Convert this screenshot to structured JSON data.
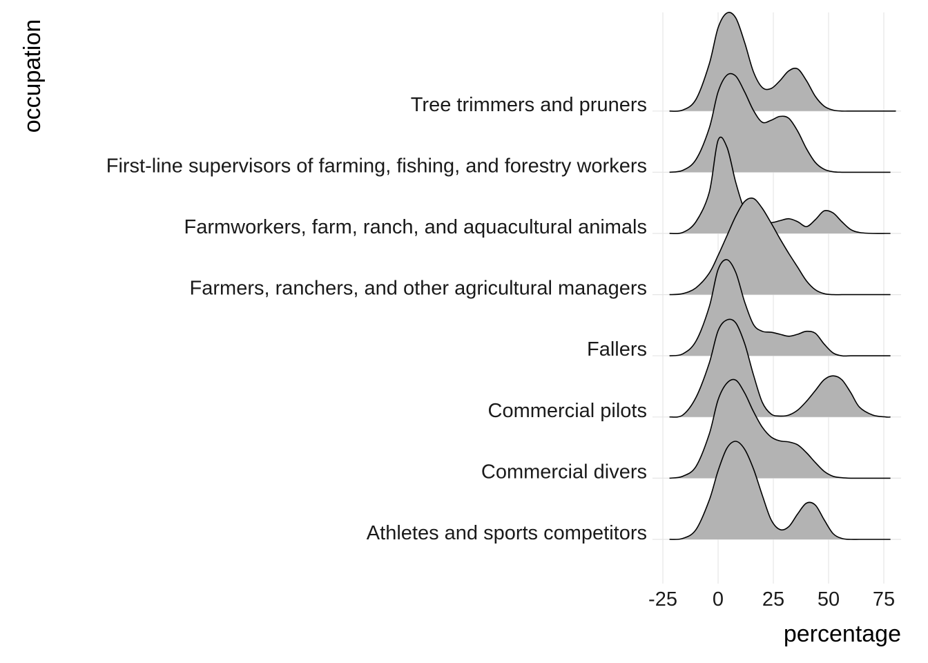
{
  "chart_data": {
    "type": "ridgeline",
    "xlabel": "percentage",
    "ylabel": "occupation",
    "xlim": [
      -25,
      75
    ],
    "x_ticks": [
      "-25",
      "0",
      "25",
      "50",
      "75"
    ],
    "grid": true,
    "fill_color": "#b3b3b3",
    "line_color": "#000000",
    "x_grid": [
      -22,
      -16,
      -10,
      -4,
      0,
      4,
      8,
      12,
      16,
      20,
      24,
      28,
      32,
      36,
      40,
      44,
      48,
      52,
      56,
      60,
      64,
      70,
      76,
      80
    ],
    "categories": [
      "Athletes and sports competitors",
      "Commercial divers",
      "Commercial pilots",
      "Fallers",
      "Farmers, ranchers, and other agricultural managers",
      "Farmworkers, farm, ranch, and aquacultural animals",
      "First-line supervisors of farming, fishing, and forestry workers",
      "Tree trimmers and pruners"
    ],
    "series": [
      {
        "name": "Athletes and sports competitors",
        "range": [
          -22,
          78
        ],
        "density": [
          0,
          0.01,
          0.1,
          0.4,
          0.7,
          0.93,
          1.0,
          0.92,
          0.72,
          0.45,
          0.2,
          0.1,
          0.13,
          0.26,
          0.37,
          0.35,
          0.2,
          0.06,
          0.01,
          0,
          0,
          0,
          0,
          0
        ]
      },
      {
        "name": "Commercial divers",
        "range": [
          -22,
          78
        ],
        "density": [
          0,
          0.02,
          0.12,
          0.45,
          0.8,
          0.97,
          1.0,
          0.87,
          0.68,
          0.52,
          0.42,
          0.38,
          0.37,
          0.34,
          0.26,
          0.16,
          0.07,
          0.02,
          0.005,
          0,
          0,
          0,
          0,
          0
        ]
      },
      {
        "name": "Commercial pilots",
        "range": [
          -22,
          78
        ],
        "density": [
          0,
          0.02,
          0.2,
          0.55,
          0.88,
          0.99,
          0.96,
          0.75,
          0.43,
          0.15,
          0.03,
          0.01,
          0.02,
          0.07,
          0.16,
          0.27,
          0.38,
          0.42,
          0.38,
          0.25,
          0.1,
          0.02,
          0,
          0
        ]
      },
      {
        "name": "Fallers",
        "range": [
          -22,
          78
        ],
        "density": [
          0,
          0.02,
          0.15,
          0.5,
          0.88,
          0.98,
          0.85,
          0.55,
          0.32,
          0.25,
          0.24,
          0.22,
          0.2,
          0.22,
          0.25,
          0.23,
          0.12,
          0.03,
          0,
          0,
          0,
          0,
          0,
          0
        ]
      },
      {
        "name": "Farmers, ranchers, and other agricultural managers",
        "range": [
          -22,
          78
        ],
        "density": [
          0,
          0.01,
          0.07,
          0.22,
          0.4,
          0.6,
          0.8,
          0.95,
          0.98,
          0.88,
          0.73,
          0.57,
          0.42,
          0.28,
          0.14,
          0.05,
          0.01,
          0,
          0,
          0,
          0,
          0,
          0,
          0
        ]
      },
      {
        "name": "Farmworkers, farm, ranch, and aquacultural animals",
        "range": [
          -22,
          78
        ],
        "density": [
          0,
          0.01,
          0.12,
          0.42,
          0.95,
          0.88,
          0.52,
          0.24,
          0.14,
          0.12,
          0.11,
          0.13,
          0.15,
          0.12,
          0.07,
          0.14,
          0.23,
          0.21,
          0.12,
          0.04,
          0.01,
          0,
          0,
          0
        ]
      },
      {
        "name": "First-line supervisors of farming, fishing, and forestry workers",
        "range": [
          -22,
          78
        ],
        "density": [
          0,
          0.02,
          0.13,
          0.45,
          0.82,
          0.99,
          0.98,
          0.82,
          0.63,
          0.51,
          0.53,
          0.57,
          0.55,
          0.42,
          0.24,
          0.1,
          0.03,
          0.005,
          0,
          0,
          0,
          0,
          0,
          0
        ]
      },
      {
        "name": "Tree trimmers and pruners",
        "range": [
          -22,
          80
        ],
        "density": [
          0,
          0.01,
          0.12,
          0.48,
          0.85,
          1.0,
          0.95,
          0.7,
          0.4,
          0.24,
          0.23,
          0.31,
          0.41,
          0.43,
          0.31,
          0.15,
          0.05,
          0.01,
          0,
          0,
          0,
          0,
          0,
          0
        ]
      }
    ]
  }
}
